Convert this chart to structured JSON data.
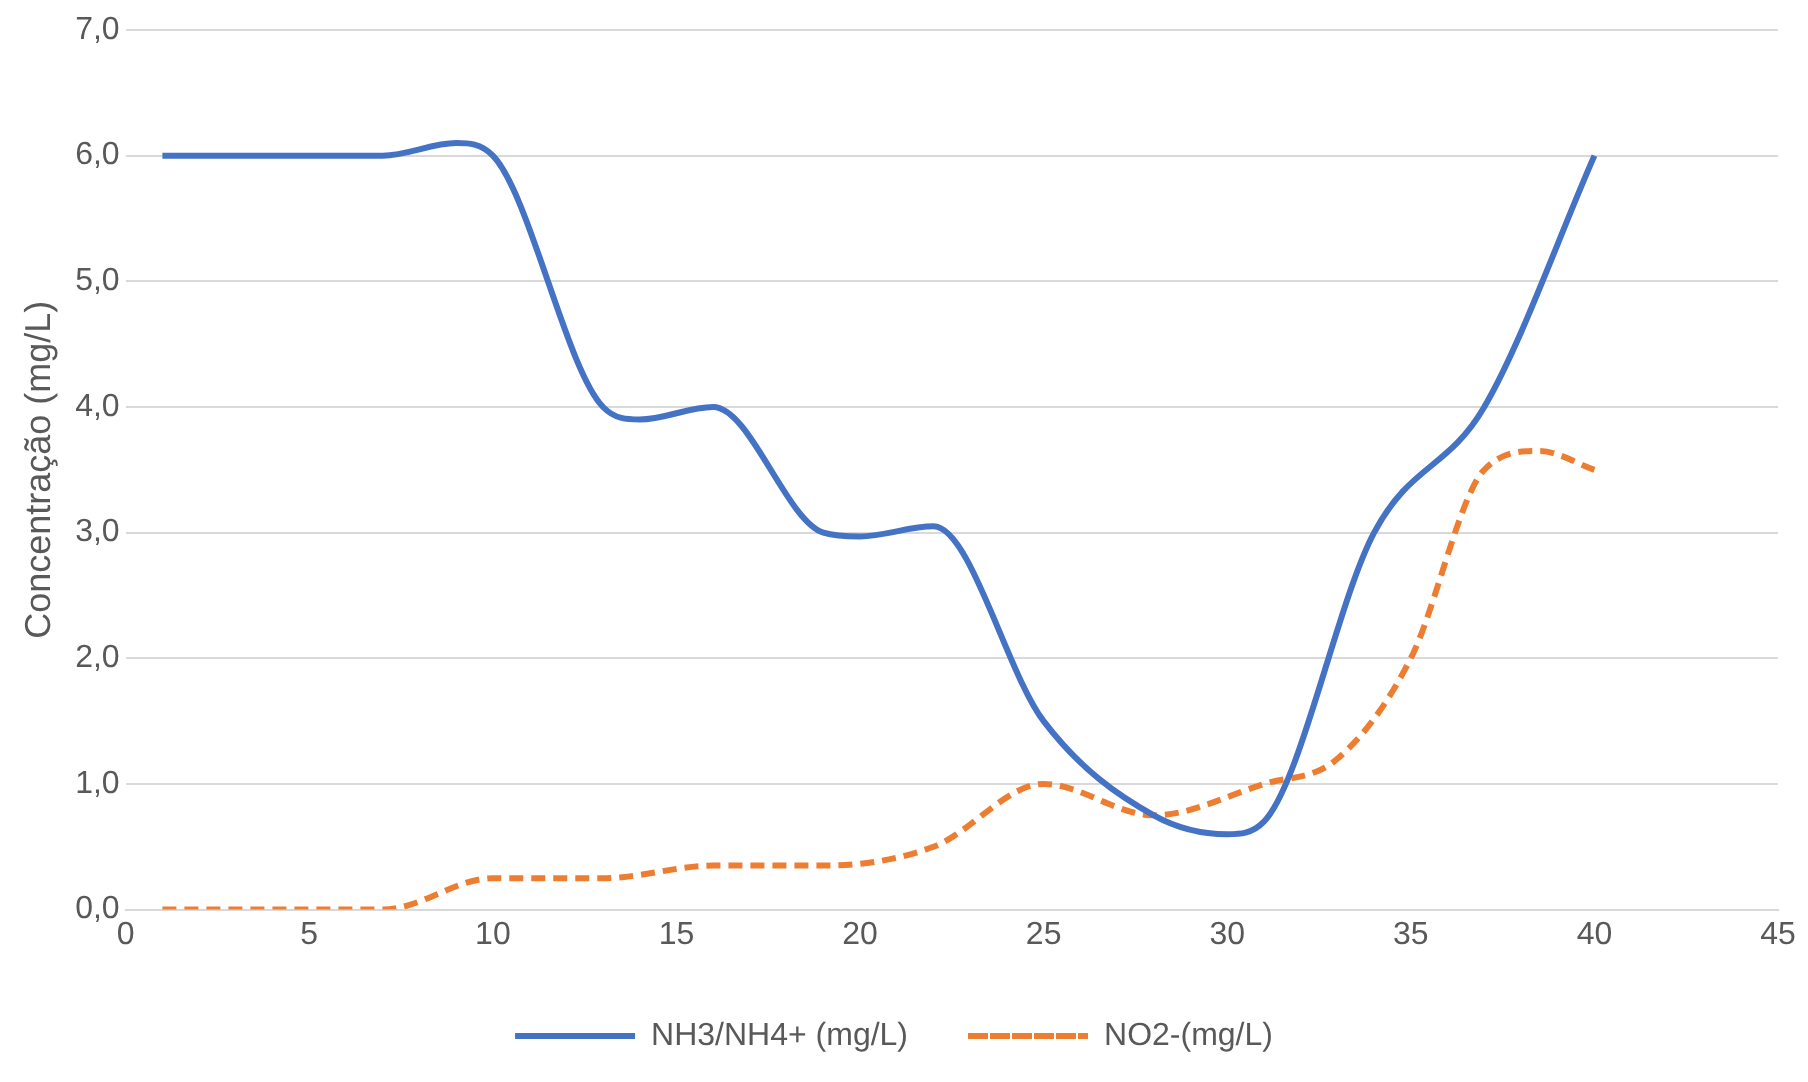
{
  "chart_data": {
    "type": "line",
    "ylabel": "Concentração (mg/L)",
    "xlim": [
      0,
      45
    ],
    "xticks": [
      0,
      5,
      10,
      15,
      20,
      25,
      30,
      35,
      40,
      45
    ],
    "ylim": [
      0,
      7
    ],
    "yticks": [
      {
        "value": 0,
        "label": "0,0"
      },
      {
        "value": 1,
        "label": "1,0"
      },
      {
        "value": 2,
        "label": "2,0"
      },
      {
        "value": 3,
        "label": "3,0"
      },
      {
        "value": 4,
        "label": "4,0"
      },
      {
        "value": 5,
        "label": "5,0"
      },
      {
        "value": 6,
        "label": "6,0"
      },
      {
        "value": 7,
        "label": "7,0"
      }
    ],
    "grid": "y",
    "legend": "bottom",
    "marker": "none",
    "series": [
      {
        "name": "NH3/NH4+ (mg/L)",
        "color": "#4472c4",
        "line_style": "solid",
        "x": [
          1,
          4,
          7,
          9,
          10,
          13,
          14,
          16,
          19,
          20,
          22,
          25,
          28,
          30,
          31,
          34,
          37,
          40
        ],
        "values": [
          6.0,
          6.0,
          6.0,
          6.1,
          6.0,
          4.0,
          3.9,
          4.0,
          3.0,
          2.97,
          3.05,
          1.5,
          0.75,
          0.6,
          0.7,
          3.0,
          4.0,
          6.0
        ]
      },
      {
        "name": "NO2-(mg/L)",
        "color": "#ed7d31",
        "line_style": "dashed",
        "x": [
          1,
          7,
          10,
          13,
          16,
          19,
          22,
          25,
          28,
          31,
          33,
          35,
          37,
          38.5,
          40
        ],
        "values": [
          0,
          0,
          0.25,
          0.25,
          0.35,
          0.35,
          0.5,
          1.0,
          0.75,
          1.0,
          1.2,
          2.0,
          3.5,
          3.65,
          3.5
        ]
      }
    ]
  }
}
